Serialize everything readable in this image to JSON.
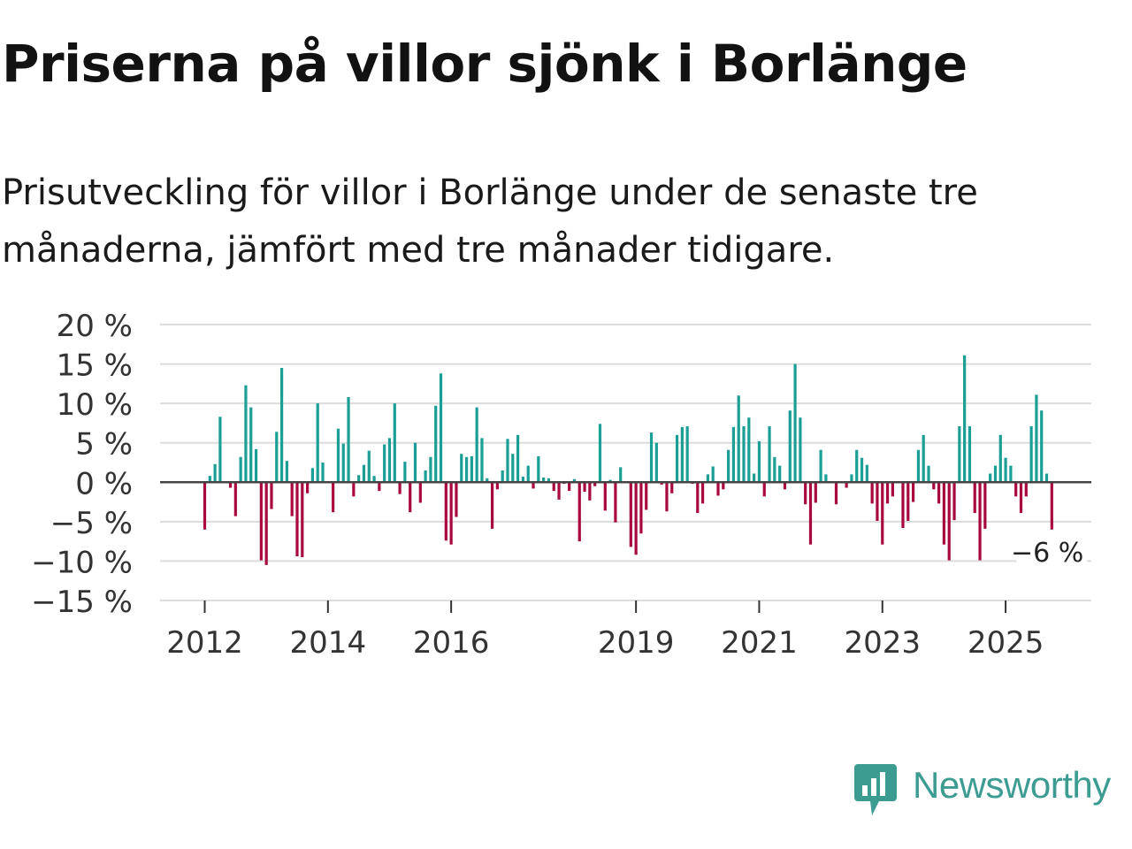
{
  "title": "Priserna på villor sjönk i Borlänge",
  "subtitle": "Prisutveckling för villor i Borlänge under de senaste tre månaderna, jämfört med tre månader tidigare.",
  "brand": {
    "name": "Newsworthy",
    "icon": "newsworthy-chart-bubble-icon",
    "color": "#3c9c92"
  },
  "colors": {
    "positive": "#1a9e96",
    "negative": "#a8083f",
    "grid": "#dcdcdc",
    "zero": "#444444"
  },
  "chart_data": {
    "type": "bar",
    "title": "Priserna på villor sjönk i Borlänge",
    "xlabel": "",
    "ylabel": "",
    "ylim": [
      -15,
      20
    ],
    "yticks": [
      20,
      15,
      10,
      5,
      0,
      -5,
      -10,
      -15
    ],
    "ytick_labels": [
      "20 %",
      "15 %",
      "10 %",
      "5 %",
      "0 %",
      "−5 %",
      "−10 %",
      "−15 %"
    ],
    "xticks": [
      {
        "label": "2012",
        "index": 0
      },
      {
        "label": "2014",
        "index": 24
      },
      {
        "label": "2016",
        "index": 48
      },
      {
        "label": "2019",
        "index": 84
      },
      {
        "label": "2021",
        "index": 108
      },
      {
        "label": "2023",
        "index": 132
      },
      {
        "label": "2025",
        "index": 156
      }
    ],
    "start": "2012-01",
    "frequency": "monthly",
    "series": [
      {
        "name": "Prisutveckling (%)",
        "values": [
          -6,
          0.8,
          2.3,
          8.3,
          0,
          -0.7,
          -4.3,
          3.2,
          12.3,
          9.5,
          4.2,
          -9.9,
          -10.5,
          -3.4,
          6.4,
          14.5,
          2.7,
          -4.3,
          -9.4,
          -9.5,
          -1.4,
          1.8,
          10,
          2.5,
          0,
          -3.8,
          6.8,
          4.9,
          10.8,
          -1.8,
          0.9,
          2.2,
          4,
          0.8,
          -1.1,
          4.8,
          5.6,
          10,
          -1.5,
          2.6,
          -3.8,
          5,
          -2.6,
          1.5,
          3.2,
          9.7,
          13.8,
          -7.4,
          -7.9,
          -4.4,
          3.6,
          3.2,
          3.3,
          9.5,
          5.6,
          0.5,
          -5.9,
          -0.9,
          1.5,
          5.5,
          3.6,
          6,
          0.7,
          2.1,
          -0.8,
          3.3,
          0.6,
          0.5,
          -1.1,
          -2.2,
          -0.2,
          -1.1,
          0.4,
          -7.5,
          -1.2,
          -2.3,
          -0.5,
          7.4,
          -3.6,
          0.3,
          -5.1,
          1.9,
          0,
          -8.2,
          -9.2,
          -6.5,
          -3.5,
          6.3,
          5,
          -0.3,
          -3.7,
          -1.4,
          6,
          7,
          7.1,
          -0.2,
          -3.9,
          -2.7,
          1,
          2,
          -1.7,
          -0.9,
          4.1,
          7,
          11,
          7.1,
          8.2,
          1.1,
          5.2,
          -1.8,
          7.1,
          3.2,
          2.1,
          -0.9,
          9.1,
          15,
          8.2,
          -2.8,
          -7.9,
          -2.6,
          4.1,
          1,
          0,
          -2.8,
          0,
          -0.7,
          1,
          4.1,
          3.1,
          2.2,
          -2.7,
          -4.9,
          -7.9,
          -2.7,
          -1.8,
          0,
          -5.8,
          -4.9,
          -2.5,
          4.1,
          6,
          2.1,
          -0.9,
          -2.7,
          -7.9,
          -9.9,
          -4.8,
          7.1,
          16.1,
          7.1,
          -3.9,
          -9.9,
          -5.9,
          1.1,
          2.1,
          6,
          3.1,
          2.1,
          -1.8,
          -3.9,
          -1.8,
          7.1,
          11.1,
          9.1,
          1.1,
          -6
        ]
      }
    ],
    "annotations": [
      {
        "label": "−6 %",
        "target": "last"
      }
    ],
    "grid": true,
    "legend": "none"
  }
}
